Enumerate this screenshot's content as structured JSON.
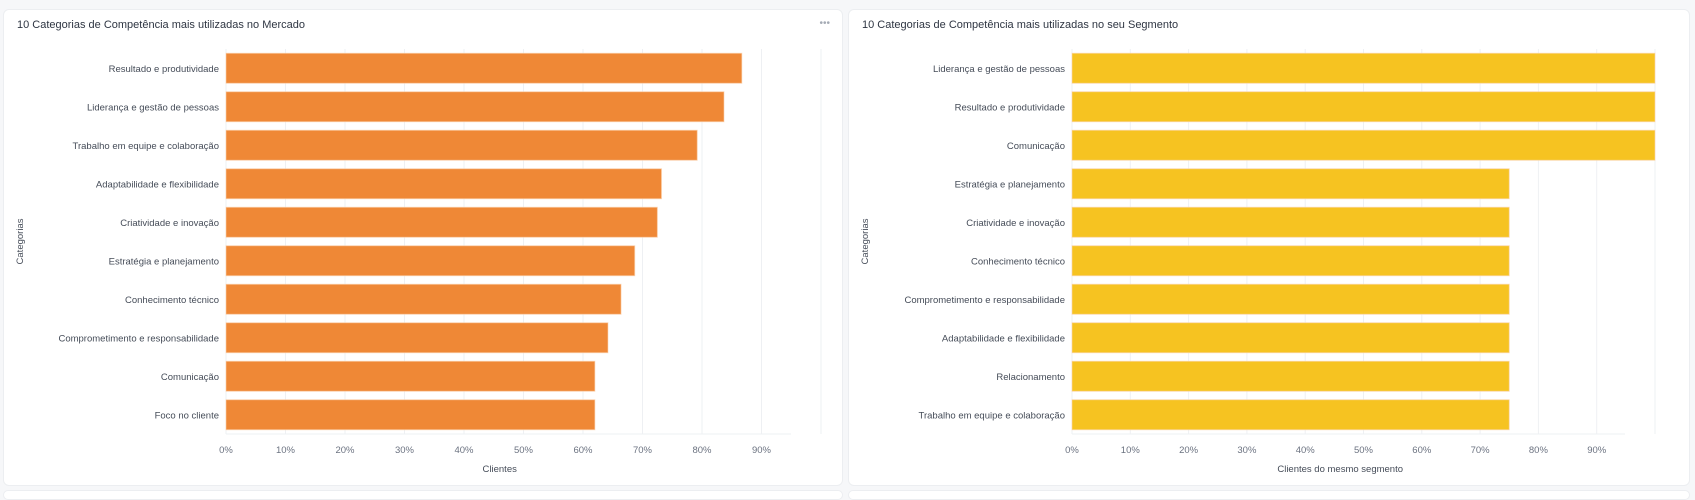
{
  "panels": [
    {
      "title": "10 Categorias de Competência mais utilizadas no Mercado",
      "menu_icon": "more-horizontal-icon"
    },
    {
      "title": "10 Categorias de Competência mais utilizadas no seu Segmento"
    }
  ],
  "chart_data": [
    {
      "type": "bar",
      "orientation": "horizontal",
      "title": "10 Categorias de Competência mais utilizadas no Mercado",
      "xlabel": "Clientes",
      "ylabel": "Categorias",
      "color": "#ef8836",
      "xlim": [
        0,
        100
      ],
      "x_ticks": [
        "0%",
        "10%",
        "20%",
        "30%",
        "40%",
        "50%",
        "60%",
        "70%",
        "80%",
        "90%"
      ],
      "grid": true,
      "categories": [
        "Resultado e produtividade",
        "Liderança e gestão de pessoas",
        "Trabalho em equipe e colaboração",
        "Adaptabilidade e flexibilidade",
        "Criatividade e inovação",
        "Estratégia e planejamento",
        "Conhecimento técnico",
        "Comprometimento e responsabilidade",
        "Comunicação",
        "Foco no cliente"
      ],
      "values": [
        86.7,
        83.7,
        79.2,
        73.2,
        72.5,
        68.7,
        66.4,
        64.2,
        62.0,
        62.0
      ]
    },
    {
      "type": "bar",
      "orientation": "horizontal",
      "title": "10 Categorias de Competência mais utilizadas no seu Segmento",
      "xlabel": "Clientes do mesmo segmento",
      "ylabel": "Categorias",
      "color": "#f6c321",
      "xlim": [
        0,
        100
      ],
      "x_ticks": [
        "0%",
        "10%",
        "20%",
        "30%",
        "40%",
        "50%",
        "60%",
        "70%",
        "80%",
        "90%"
      ],
      "grid": true,
      "categories": [
        "Liderança e gestão de pessoas",
        "Resultado e produtividade",
        "Comunicação",
        "Estratégia e planejamento",
        "Criatividade e inovação",
        "Conhecimento técnico",
        "Comprometimento e responsabilidade",
        "Adaptabilidade e flexibilidade",
        "Relacionamento",
        "Trabalho em equipe e colaboração"
      ],
      "values": [
        100,
        100,
        100,
        75,
        75,
        75,
        75,
        75,
        75,
        75
      ]
    }
  ]
}
